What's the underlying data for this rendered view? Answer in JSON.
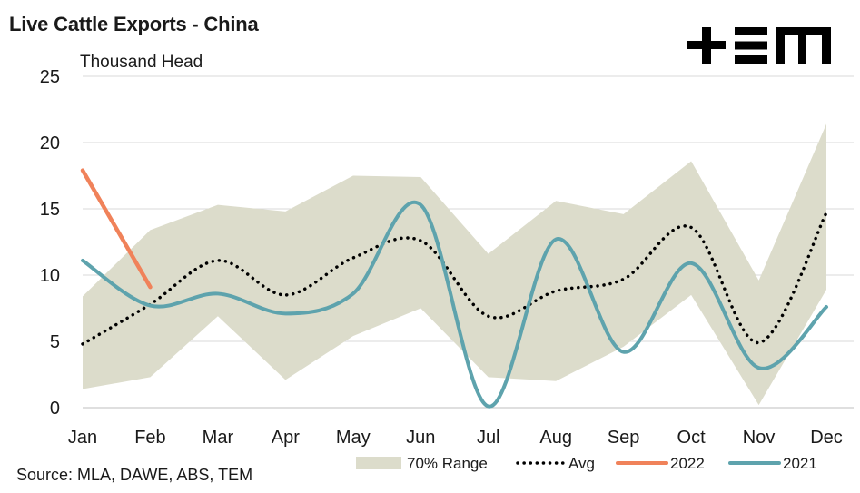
{
  "header": {
    "title": "Live Cattle Exports - China",
    "unit": "Thousand Head",
    "source": "Source: MLA, DAWE, ABS, TEM",
    "logo_text": "+EM"
  },
  "colors": {
    "range": "#dcdccb",
    "avg": "#000000",
    "y2022": "#f0825a",
    "y2021": "#5ea3ad",
    "grid": "#d9d9d9"
  },
  "chart_data": {
    "type": "line",
    "title": "Live Cattle Exports - China",
    "ylabel": "Thousand Head",
    "ylim": [
      0,
      25
    ],
    "yticks": [
      "0",
      "5",
      "10",
      "15",
      "20",
      "25"
    ],
    "categories": [
      "Jan",
      "Feb",
      "Mar",
      "Apr",
      "May",
      "Jun",
      "Jul",
      "Aug",
      "Sep",
      "Oct",
      "Nov",
      "Dec"
    ],
    "grid": "horizontal",
    "legend_position": "bottom",
    "series": [
      {
        "name": "70% Range",
        "kind": "band",
        "upper": [
          8.4,
          13.4,
          15.3,
          14.8,
          17.5,
          17.4,
          11.6,
          15.6,
          14.6,
          18.6,
          9.6,
          21.4
        ],
        "lower": [
          1.4,
          2.3,
          6.9,
          2.1,
          5.4,
          7.5,
          2.3,
          2.0,
          4.6,
          8.5,
          0.2,
          8.9
        ]
      },
      {
        "name": "Avg",
        "kind": "dotted",
        "values": [
          4.8,
          7.8,
          11.1,
          8.5,
          11.3,
          12.6,
          6.9,
          8.8,
          9.7,
          13.6,
          4.9,
          14.7
        ]
      },
      {
        "name": "2022",
        "kind": "line",
        "values": [
          17.9,
          9.1,
          null,
          null,
          null,
          null,
          null,
          null,
          null,
          null,
          null,
          null
        ]
      },
      {
        "name": "2021",
        "kind": "line",
        "values": [
          11.1,
          7.7,
          8.6,
          7.1,
          8.6,
          15.3,
          0.1,
          12.7,
          4.2,
          10.9,
          3.0,
          7.6
        ]
      }
    ]
  }
}
